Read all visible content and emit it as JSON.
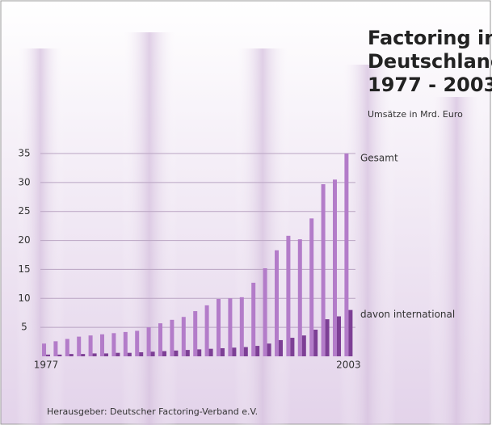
{
  "chart_data": {
    "type": "bar",
    "title": [
      "Factoring in",
      "Deutschland",
      "1977 - 2003"
    ],
    "subtitle": "Umsätze in Mrd. Euro",
    "source": "Herausgeber: Deutscher Factoring-Verband e.V.",
    "categories": [
      "1977",
      null,
      null,
      null,
      null,
      null,
      null,
      null,
      null,
      null,
      null,
      null,
      null,
      null,
      null,
      null,
      null,
      null,
      null,
      null,
      null,
      null,
      null,
      null,
      null,
      null,
      "2003"
    ],
    "series": [
      {
        "name": "Gesamt",
        "color": "#b37cc9",
        "values": [
          2.2,
          2.6,
          3.0,
          3.4,
          3.6,
          3.8,
          4.0,
          4.2,
          4.4,
          5.0,
          5.7,
          6.3,
          6.8,
          7.8,
          8.8,
          9.9,
          10.0,
          10.2,
          12.7,
          15.2,
          18.3,
          20.8,
          20.2,
          23.8,
          29.7,
          30.5,
          35.0
        ]
      },
      {
        "name": "davon international",
        "color": "#7d3f95",
        "values": [
          0.3,
          0.3,
          0.4,
          0.4,
          0.5,
          0.5,
          0.6,
          0.6,
          0.7,
          0.8,
          0.9,
          1.0,
          1.1,
          1.2,
          1.3,
          1.4,
          1.5,
          1.6,
          1.8,
          2.2,
          2.8,
          3.2,
          3.6,
          4.6,
          6.4,
          6.9,
          8.0
        ]
      }
    ],
    "ylim": [
      0,
      35
    ],
    "yticks": [
      5,
      10,
      15,
      20,
      25,
      30,
      35
    ],
    "grid": true
  }
}
